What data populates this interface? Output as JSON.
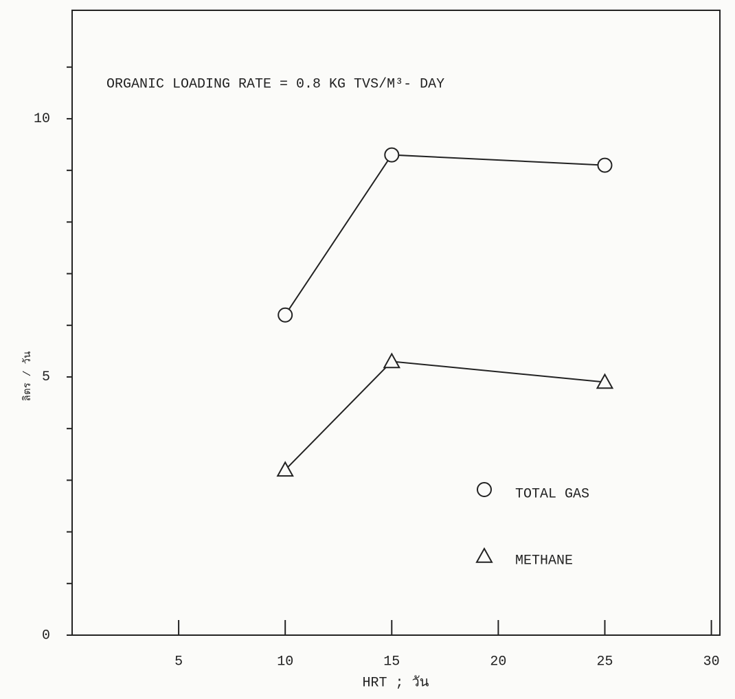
{
  "chart_data": {
    "type": "line",
    "annotation": "ORGANIC LOADING RATE = 0.8 KG TVS/M³- DAY",
    "x_label": "HRT ; วัน",
    "y_label": "ลิตร / วัน",
    "x": [
      10,
      15,
      25
    ],
    "series": [
      {
        "name": "TOTAL GAS",
        "color": "#222222",
        "marker": "circle",
        "values": [
          6.2,
          9.3,
          9.1
        ]
      },
      {
        "name": "METHANE",
        "color": "#222222",
        "marker": "triangle",
        "values": [
          3.2,
          5.3,
          4.9
        ]
      }
    ],
    "xlim": [
      0,
      30.4
    ],
    "xticks": [
      5,
      10,
      15,
      20,
      25,
      30
    ],
    "ylim": [
      0,
      12.1
    ],
    "yticks": [
      0,
      5,
      10
    ],
    "minor_yticks": [
      1,
      2,
      3,
      4,
      6,
      7,
      8,
      9,
      11
    ],
    "legend": "lower right"
  }
}
